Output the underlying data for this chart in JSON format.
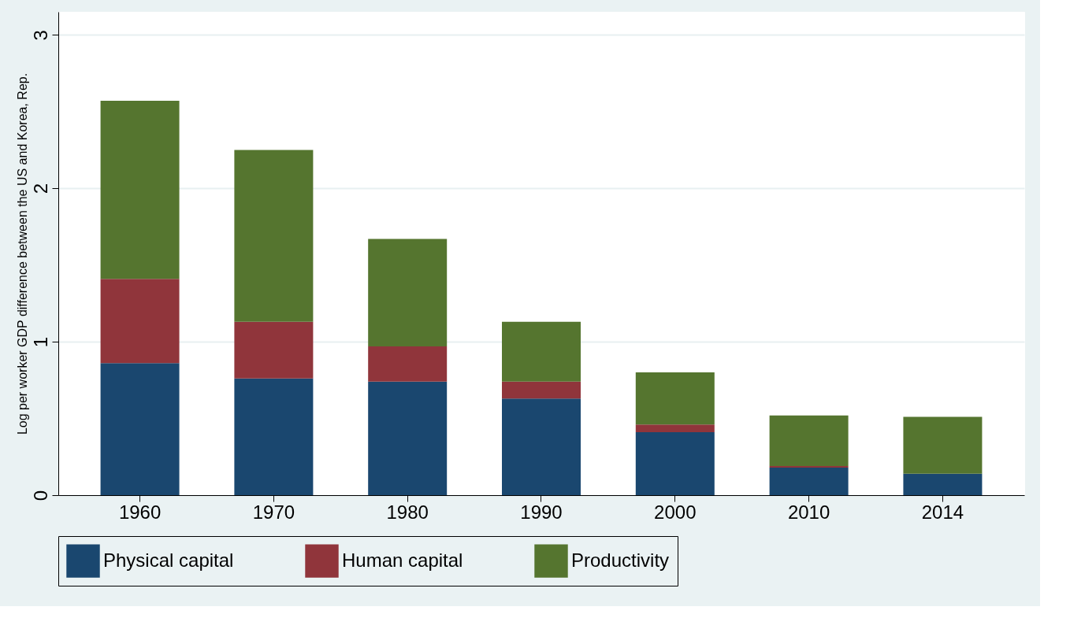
{
  "chart_data": {
    "type": "bar",
    "stacked": true,
    "ylabel": "Log per worker GDP difference between the US and Korea, Rep.",
    "categories": [
      "1960",
      "1970",
      "1980",
      "1990",
      "2000",
      "2010",
      "2014"
    ],
    "series": [
      {
        "name": "Physical capital",
        "color": "#1a476f",
        "values": [
          0.86,
          0.76,
          0.74,
          0.63,
          0.41,
          0.18,
          0.14
        ]
      },
      {
        "name": "Human capital",
        "color": "#90353b",
        "values": [
          0.55,
          0.37,
          0.23,
          0.11,
          0.05,
          0.01,
          0.0
        ]
      },
      {
        "name": "Productivity",
        "color": "#55752f",
        "values": [
          1.16,
          1.12,
          0.7,
          0.39,
          0.34,
          0.33,
          0.37
        ]
      }
    ],
    "ylim": [
      0,
      3.15
    ],
    "yticks": [
      0,
      1,
      2,
      3
    ],
    "grid": "y",
    "legend": "bottom"
  }
}
